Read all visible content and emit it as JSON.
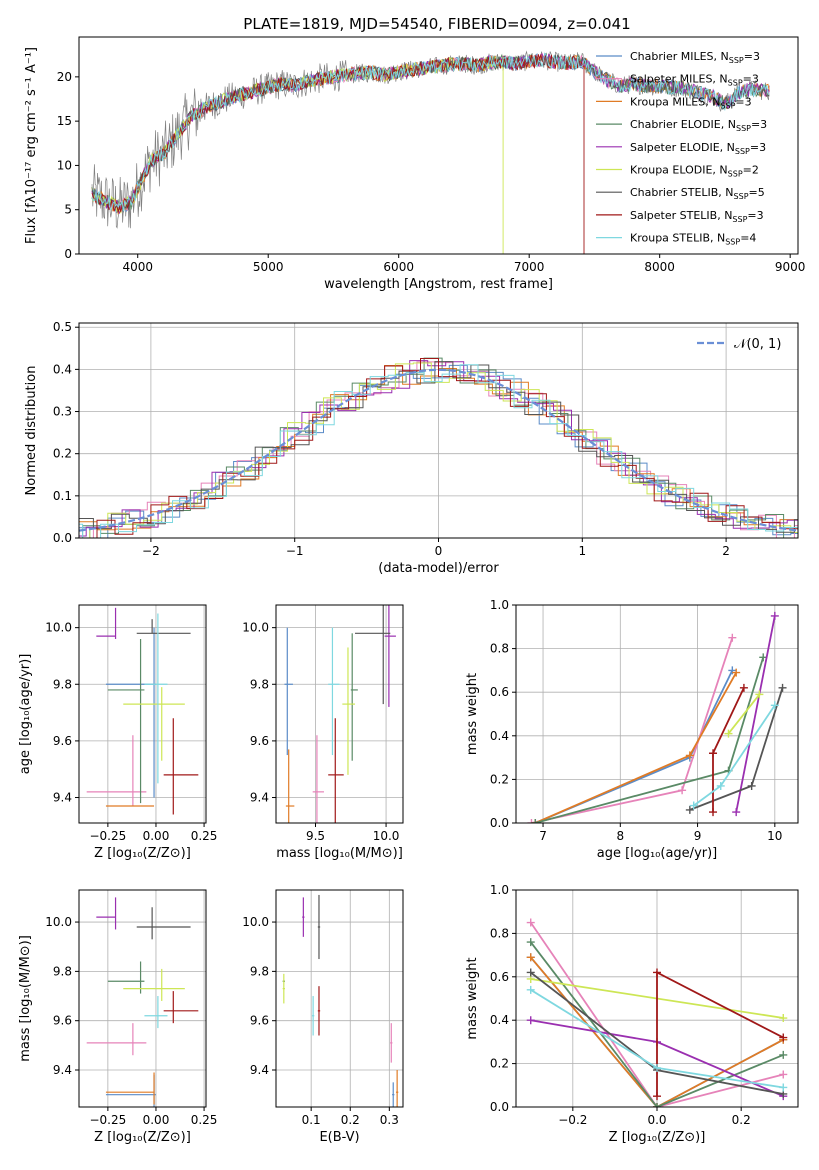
{
  "figure_title": "PLATE=1819, MJD=54540, FIBERID=0094, z=0.041",
  "colors": {
    "Chabrier MILES": "#5b8cc8",
    "Salpeter MILES": "#e683b9",
    "Kroupa MILES": "#e07b25",
    "Chabrier ELODIE": "#5a8a66",
    "Salpeter ELODIE": "#9a2fb0",
    "Kroupa ELODIE": "#cde655",
    "Chabrier STELIB": "#555555",
    "Salpeter STELIB": "#a01818",
    "Kroupa STELIB": "#7fd8e0",
    "gaussian": "#6a8fd6",
    "data": "#808080"
  },
  "chart_data": [
    {
      "type": "line",
      "panel": "spectrum",
      "xlabel": "wavelength [Angstrom, rest frame]",
      "ylabel": "Flux [fλ10⁻¹⁷ erg cm⁻² s⁻¹ A⁻¹]",
      "xlim": [
        3550,
        9060
      ],
      "ylim": [
        0,
        24.5
      ],
      "xticks": [
        4000,
        5000,
        6000,
        7000,
        8000,
        9000
      ],
      "yticks": [
        0,
        5,
        10,
        15,
        20
      ],
      "grid": false,
      "legend_position": "top-right",
      "legend": [
        {
          "label": "Chabrier MILES, N",
          "sub": "SSP",
          "tail": "=3",
          "color": "#5b8cc8"
        },
        {
          "label": "Salpeter MILES, N",
          "sub": "SSP",
          "tail": "=3",
          "color": "#e683b9"
        },
        {
          "label": "Kroupa MILES, N",
          "sub": "SSP",
          "tail": "=3",
          "color": "#e07b25"
        },
        {
          "label": "Chabrier ELODIE, N",
          "sub": "SSP",
          "tail": "=3",
          "color": "#5a8a66"
        },
        {
          "label": "Salpeter ELODIE, N",
          "sub": "SSP",
          "tail": "=3",
          "color": "#9a2fb0"
        },
        {
          "label": "Kroupa ELODIE, N",
          "sub": "SSP",
          "tail": "=2",
          "color": "#cde655"
        },
        {
          "label": "Chabrier STELIB, N",
          "sub": "SSP",
          "tail": "=5",
          "color": "#555555"
        },
        {
          "label": "Salpeter STELIB, N",
          "sub": "SSP",
          "tail": "=3",
          "color": "#a01818"
        },
        {
          "label": "Kroupa STELIB, N",
          "sub": "SSP",
          "tail": "=4",
          "color": "#7fd8e0"
        }
      ],
      "continuum": [
        [
          3650,
          6.8
        ],
        [
          3750,
          6.0
        ],
        [
          3850,
          5.3
        ],
        [
          3950,
          5.8
        ],
        [
          4000,
          7.4
        ],
        [
          4100,
          10.5
        ],
        [
          4200,
          11.3
        ],
        [
          4300,
          13.4
        ],
        [
          4400,
          15.4
        ],
        [
          4500,
          16.4
        ],
        [
          4600,
          17.0
        ],
        [
          4700,
          17.6
        ],
        [
          4800,
          18.0
        ],
        [
          4900,
          18.4
        ],
        [
          5000,
          18.8
        ],
        [
          5100,
          19.2
        ],
        [
          5200,
          19.0
        ],
        [
          5300,
          19.5
        ],
        [
          5400,
          19.8
        ],
        [
          5500,
          20.0
        ],
        [
          5600,
          20.2
        ],
        [
          5700,
          20.4
        ],
        [
          5800,
          20.5
        ],
        [
          5900,
          20.2
        ],
        [
          6000,
          20.6
        ],
        [
          6100,
          20.8
        ],
        [
          6200,
          21.0
        ],
        [
          6300,
          21.2
        ],
        [
          6400,
          21.4
        ],
        [
          6500,
          21.5
        ],
        [
          6600,
          21.3
        ],
        [
          6700,
          21.6
        ],
        [
          6800,
          21.7
        ],
        [
          6900,
          21.5
        ],
        [
          7000,
          21.8
        ],
        [
          7100,
          21.9
        ],
        [
          7200,
          21.7
        ],
        [
          7300,
          21.5
        ],
        [
          7400,
          21.8
        ],
        [
          7500,
          20.6
        ],
        [
          7600,
          19.6
        ],
        [
          7700,
          19.0
        ],
        [
          7800,
          19.2
        ],
        [
          7900,
          19.0
        ],
        [
          8000,
          18.9
        ],
        [
          8100,
          18.8
        ],
        [
          8200,
          18.7
        ],
        [
          8300,
          18.2
        ],
        [
          8400,
          17.8
        ],
        [
          8500,
          16.9
        ],
        [
          8600,
          18.2
        ],
        [
          8700,
          18.6
        ],
        [
          8800,
          18.4
        ]
      ],
      "dropouts": [
        {
          "series": "Kroupa ELODIE",
          "x": 6800
        },
        {
          "series": "Salpeter STELIB",
          "x": 7420
        }
      ]
    },
    {
      "type": "histogram",
      "panel": "residuals",
      "xlabel": "(data-model)/error",
      "ylabel": "Normed distribution",
      "xlim": [
        -2.5,
        2.5
      ],
      "ylim": [
        0,
        0.51
      ],
      "xticks": [
        -2,
        -1,
        0,
        1,
        2
      ],
      "yticks": [
        0.0,
        0.1,
        0.2,
        0.3,
        0.4,
        0.5
      ],
      "grid": true,
      "legend_position": "top-right",
      "gaussian_label": "𝒩(0, 1)",
      "bin_width": 0.125
    },
    {
      "type": "scatter",
      "panel": "Z vs age",
      "xlabel": "Z [log₁₀(Z/Z⊙)]",
      "ylabel": "age  [log₁₀(age/yr)]",
      "xlim": [
        -0.4,
        0.26
      ],
      "ylim": [
        9.31,
        10.08
      ],
      "xticks": [
        -0.25,
        0.0,
        0.25
      ],
      "yticks": [
        9.4,
        9.6,
        9.8,
        10.0
      ],
      "grid": true
    },
    {
      "type": "scatter",
      "panel": "mass vs age",
      "xlabel": "mass [log₁₀(M/M⊙)]",
      "ylabel": "",
      "xlim": [
        9.22,
        10.12
      ],
      "ylim": [
        9.31,
        10.08
      ],
      "xticks": [
        9.5,
        10.0
      ],
      "yticks": [
        9.4,
        9.6,
        9.8,
        10.0
      ],
      "grid": true
    },
    {
      "type": "line",
      "panel": "age vs mass weight",
      "xlabel": "age  [log₁₀(age/yr)]",
      "ylabel": "mass weight",
      "xlim": [
        6.65,
        10.3
      ],
      "ylim": [
        0,
        1.0
      ],
      "xticks": [
        7,
        8,
        9,
        10
      ],
      "yticks": [
        0.0,
        0.2,
        0.4,
        0.6,
        0.8,
        1.0
      ],
      "grid": true
    },
    {
      "type": "scatter",
      "panel": "Z vs mass",
      "xlabel": "Z [log₁₀(Z/Z⊙)]",
      "ylabel": "mass [log₁₀(M/M⊙)]",
      "xlim": [
        -0.4,
        0.26
      ],
      "ylim": [
        9.25,
        10.13
      ],
      "xticks": [
        -0.25,
        0.0,
        0.25
      ],
      "yticks": [
        9.4,
        9.6,
        9.8,
        10.0
      ],
      "grid": true
    },
    {
      "type": "scatter",
      "panel": "E(B-V) vs mass",
      "xlabel": "E(B-V)",
      "ylabel": "",
      "xlim": [
        0.01,
        0.335
      ],
      "ylim": [
        9.25,
        10.13
      ],
      "xticks": [
        0.1,
        0.2,
        0.3
      ],
      "yticks": [
        9.4,
        9.6,
        9.8,
        10.0
      ],
      "grid": true
    },
    {
      "type": "line",
      "panel": "Z vs mass weight",
      "xlabel": "Z [log₁₀(Z/Z⊙)]",
      "ylabel": "mass weight",
      "xlim": [
        -0.335,
        0.335
      ],
      "ylim": [
        0,
        1.0
      ],
      "xticks": [
        -0.2,
        0.0,
        0.2
      ],
      "yticks": [
        0.0,
        0.2,
        0.4,
        0.6,
        0.8,
        1.0
      ],
      "grid": true
    }
  ],
  "models": [
    {
      "name": "Chabrier MILES",
      "Z": -0.01,
      "age": 9.8,
      "mass": 9.3,
      "zerr": [
        0.25,
        0.01
      ],
      "agerr": [
        0.4,
        0.2
      ],
      "merr": [
        0.02,
        0.04
      ],
      "ebv": 0.31,
      "ebverr": 0.05,
      "sfh_age": [
        [
          6.9,
          0.0
        ],
        [
          8.9,
          0.3
        ],
        [
          9.45,
          0.7
        ]
      ],
      "sfh_Z": [
        [
          -0.3,
          0.69
        ],
        [
          0.0,
          0.0
        ],
        [
          0.3,
          0.31
        ]
      ]
    },
    {
      "name": "Salpeter MILES",
      "Z": -0.12,
      "age": 9.42,
      "mass": 9.51,
      "zerr": [
        0.24,
        0.07
      ],
      "agerr": [
        0.05,
        0.2
      ],
      "merr": [
        0.03,
        0.05
      ],
      "ebv": 0.305,
      "ebverr": 0.08,
      "sfh_age": [
        [
          6.85,
          0.0
        ],
        [
          8.8,
          0.15
        ],
        [
          9.45,
          0.85
        ]
      ],
      "sfh_Z": [
        [
          -0.3,
          0.85
        ],
        [
          0.0,
          0.0
        ],
        [
          0.3,
          0.15
        ]
      ]
    },
    {
      "name": "Kroupa MILES",
      "Z": -0.01,
      "age": 9.37,
      "mass": 9.31,
      "zerr": [
        0.25,
        0.0
      ],
      "agerr": [
        0.0,
        0.0
      ],
      "merr": [
        0.02,
        0.04
      ],
      "ebv": 0.32,
      "ebverr": 0.09,
      "sfh_age": [
        [
          6.9,
          0.0
        ],
        [
          8.9,
          0.31
        ],
        [
          9.5,
          0.69
        ]
      ],
      "sfh_Z": [
        [
          -0.3,
          0.69
        ],
        [
          0.0,
          0.0
        ],
        [
          0.3,
          0.31
        ]
      ]
    },
    {
      "name": "Chabrier ELODIE",
      "Z": -0.08,
      "age": 9.78,
      "mass": 9.76,
      "zerr": [
        0.17,
        0.02
      ],
      "agerr": [
        0.4,
        0.18
      ],
      "merr": [
        0.01,
        0.04
      ],
      "ebv": 0.03,
      "ebverr": 0.0,
      "sfh_age": [
        [
          6.9,
          0.0
        ],
        [
          9.4,
          0.24
        ],
        [
          9.85,
          0.76
        ]
      ],
      "sfh_Z": [
        [
          -0.3,
          0.76
        ],
        [
          0.0,
          0.0
        ],
        [
          0.3,
          0.24
        ]
      ]
    },
    {
      "name": "Salpeter ELODIE",
      "Z": -0.21,
      "age": 9.97,
      "mass": 10.02,
      "zerr": [
        0.1,
        0.0
      ],
      "agerr": [
        0.01,
        0.1
      ],
      "merr": [
        0.03,
        0.05
      ],
      "ebv": 0.08,
      "ebverr": 0.08,
      "sfh_age": [
        [
          9.5,
          0.05
        ],
        [
          10.0,
          0.95
        ]
      ],
      "sfh_Z": [
        [
          -0.3,
          0.4
        ],
        [
          0.0,
          0.3
        ],
        [
          0.3,
          0.05
        ]
      ]
    },
    {
      "name": "Kroupa ELODIE",
      "Z": 0.03,
      "age": 9.73,
      "mass": 9.73,
      "zerr": [
        0.2,
        0.12
      ],
      "agerr": [
        0.2,
        0.06
      ],
      "merr": [
        0.04,
        0.05
      ],
      "ebv": 0.03,
      "ebverr": 0.06,
      "sfh_age": [
        [
          9.4,
          0.41
        ],
        [
          9.8,
          0.59
        ]
      ],
      "sfh_Z": [
        [
          -0.3,
          0.59
        ],
        [
          0.3,
          0.41
        ]
      ]
    },
    {
      "name": "Chabrier STELIB",
      "Z": -0.02,
      "age": 9.98,
      "mass": 9.98,
      "zerr": [
        0.08,
        0.2
      ],
      "agerr": [
        0.0,
        0.05
      ],
      "merr": [
        0.2,
        0.05
      ],
      "ebv": 0.12,
      "ebverr": 0.13,
      "sfh_age": [
        [
          8.9,
          0.06
        ],
        [
          9.7,
          0.17
        ],
        [
          10.1,
          0.62
        ]
      ],
      "sfh_Z": [
        [
          -0.3,
          0.62
        ],
        [
          0.0,
          0.17
        ],
        [
          0.3,
          0.06
        ]
      ]
    },
    {
      "name": "Salpeter STELIB",
      "Z": 0.09,
      "age": 9.48,
      "mass": 9.64,
      "zerr": [
        0.05,
        0.13
      ],
      "agerr": [
        0.14,
        0.2
      ],
      "merr": [
        0.05,
        0.06
      ],
      "ebv": 0.12,
      "ebverr": 0.1,
      "sfh_age": [
        [
          9.2,
          0.05
        ],
        [
          9.2,
          0.32
        ],
        [
          9.6,
          0.62
        ]
      ],
      "sfh_Z": [
        [
          0.0,
          0.05
        ],
        [
          0.0,
          0.62
        ],
        [
          0.3,
          0.32
        ]
      ]
    },
    {
      "name": "Kroupa STELIB",
      "Z": 0.01,
      "age": 9.8,
      "mass": 9.62,
      "zerr": [
        0.07,
        0.05
      ],
      "agerr": [
        0.35,
        0.25
      ],
      "merr": [
        0.03,
        0.05
      ],
      "ebv": 0.105,
      "ebverr": 0.08,
      "sfh_age": [
        [
          8.95,
          0.08
        ],
        [
          9.3,
          0.17
        ],
        [
          10.0,
          0.54
        ]
      ],
      "sfh_Z": [
        [
          -0.3,
          0.54
        ],
        [
          0.0,
          0.18
        ],
        [
          0.3,
          0.09
        ]
      ]
    }
  ]
}
